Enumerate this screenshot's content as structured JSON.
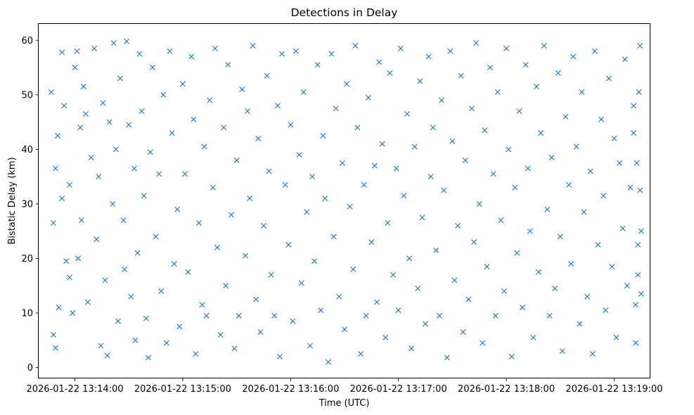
{
  "chart_data": {
    "type": "scatter",
    "title": "Detections in Delay",
    "xlabel": "Time (UTC)",
    "ylabel": "Bistatic Delay (km)",
    "xlim_minutes": [
      -0.336,
      5.336
    ],
    "ylim": [
      -2.0,
      63.0
    ],
    "x_ticks": [
      {
        "value": 0,
        "label": "2026-01-22 13:14:00"
      },
      {
        "value": 1,
        "label": "2026-01-22 13:15:00"
      },
      {
        "value": 2,
        "label": "2026-01-22 13:16:00"
      },
      {
        "value": 3,
        "label": "2026-01-22 13:17:00"
      },
      {
        "value": 4,
        "label": "2026-01-22 13:18:00"
      },
      {
        "value": 5,
        "label": "2026-01-22 13:19:00"
      }
    ],
    "y_ticks": [
      {
        "value": 0,
        "label": "0"
      },
      {
        "value": 10,
        "label": "10"
      },
      {
        "value": 20,
        "label": "20"
      },
      {
        "value": 30,
        "label": "30"
      },
      {
        "value": 40,
        "label": "40"
      },
      {
        "value": 50,
        "label": "50"
      },
      {
        "value": 60,
        "label": "60"
      }
    ],
    "grid": false,
    "marker": "x",
    "marker_color": "#1f77b4",
    "x_unit": "minutes after 2026-01-22 13:14:00 UTC",
    "series": [
      {
        "name": "detections",
        "points": [
          [
            -0.22,
            50.5
          ],
          [
            -0.2,
            26.5
          ],
          [
            -0.18,
            36.5
          ],
          [
            -0.16,
            42.5
          ],
          [
            -0.2,
            6.0
          ],
          [
            -0.15,
            11.0
          ],
          [
            -0.12,
            57.8
          ],
          [
            -0.1,
            48.0
          ],
          [
            -0.12,
            31.0
          ],
          [
            -0.08,
            19.5
          ],
          [
            -0.18,
            3.6
          ],
          [
            -0.05,
            33.5
          ],
          [
            -0.02,
            10.0
          ],
          [
            0.02,
            58.0
          ],
          [
            0.05,
            44.0
          ],
          [
            -0.05,
            16.5
          ],
          [
            0.0,
            55.0
          ],
          [
            0.03,
            20.0
          ],
          [
            0.08,
            51.5
          ],
          [
            0.1,
            46.5
          ],
          [
            0.06,
            27.0
          ],
          [
            0.12,
            12.0
          ],
          [
            0.15,
            38.5
          ],
          [
            0.18,
            58.5
          ],
          [
            0.2,
            23.5
          ],
          [
            0.22,
            35.0
          ],
          [
            0.24,
            4.0
          ],
          [
            0.26,
            48.5
          ],
          [
            0.28,
            16.0
          ],
          [
            0.3,
            2.2
          ],
          [
            0.32,
            45.0
          ],
          [
            0.35,
            30.0
          ],
          [
            0.36,
            59.5
          ],
          [
            0.38,
            40.0
          ],
          [
            0.4,
            8.5
          ],
          [
            0.42,
            53.0
          ],
          [
            0.45,
            27.0
          ],
          [
            0.46,
            18.0
          ],
          [
            0.48,
            59.8
          ],
          [
            0.5,
            44.5
          ],
          [
            0.52,
            13.0
          ],
          [
            0.55,
            36.5
          ],
          [
            0.56,
            5.0
          ],
          [
            0.58,
            21.0
          ],
          [
            0.6,
            57.5
          ],
          [
            0.62,
            47.0
          ],
          [
            0.64,
            31.5
          ],
          [
            0.66,
            9.0
          ],
          [
            0.68,
            1.8
          ],
          [
            0.7,
            39.5
          ],
          [
            0.72,
            55.0
          ],
          [
            0.75,
            24.0
          ],
          [
            0.78,
            35.5
          ],
          [
            0.8,
            14.0
          ],
          [
            0.82,
            50.0
          ],
          [
            0.85,
            4.5
          ],
          [
            0.88,
            58.0
          ],
          [
            0.9,
            43.0
          ],
          [
            0.92,
            19.0
          ],
          [
            0.95,
            29.0
          ],
          [
            0.97,
            7.5
          ],
          [
            1.0,
            52.0
          ],
          [
            1.02,
            35.5
          ],
          [
            1.05,
            17.5
          ],
          [
            1.08,
            57.0
          ],
          [
            1.1,
            45.5
          ],
          [
            1.12,
            2.5
          ],
          [
            1.15,
            26.5
          ],
          [
            1.18,
            11.5
          ],
          [
            1.2,
            40.5
          ],
          [
            1.22,
            9.5
          ],
          [
            1.25,
            49.0
          ],
          [
            1.28,
            33.0
          ],
          [
            1.3,
            58.5
          ],
          [
            1.32,
            22.0
          ],
          [
            1.35,
            6.0
          ],
          [
            1.38,
            44.0
          ],
          [
            1.4,
            15.0
          ],
          [
            1.42,
            55.5
          ],
          [
            1.45,
            28.0
          ],
          [
            1.48,
            3.5
          ],
          [
            1.5,
            38.0
          ],
          [
            1.52,
            9.5
          ],
          [
            1.55,
            51.0
          ],
          [
            1.58,
            20.5
          ],
          [
            1.6,
            47.0
          ],
          [
            1.62,
            31.0
          ],
          [
            1.65,
            59.0
          ],
          [
            1.68,
            12.5
          ],
          [
            1.7,
            42.0
          ],
          [
            1.72,
            6.5
          ],
          [
            1.75,
            26.0
          ],
          [
            1.78,
            53.5
          ],
          [
            1.8,
            36.0
          ],
          [
            1.82,
            17.0
          ],
          [
            1.85,
            9.5
          ],
          [
            1.88,
            48.0
          ],
          [
            1.9,
            2.0
          ],
          [
            1.92,
            57.5
          ],
          [
            1.95,
            33.5
          ],
          [
            1.98,
            22.5
          ],
          [
            2.0,
            44.5
          ],
          [
            2.02,
            8.5
          ],
          [
            2.05,
            58.0
          ],
          [
            2.08,
            39.0
          ],
          [
            2.1,
            15.5
          ],
          [
            2.12,
            50.5
          ],
          [
            2.15,
            28.5
          ],
          [
            2.18,
            4.0
          ],
          [
            2.2,
            35.0
          ],
          [
            2.22,
            19.5
          ],
          [
            2.25,
            55.5
          ],
          [
            2.28,
            10.5
          ],
          [
            2.3,
            42.5
          ],
          [
            2.32,
            31.0
          ],
          [
            2.35,
            1.0
          ],
          [
            2.38,
            57.5
          ],
          [
            2.4,
            24.0
          ],
          [
            2.42,
            47.5
          ],
          [
            2.45,
            13.0
          ],
          [
            2.48,
            37.5
          ],
          [
            2.5,
            7.0
          ],
          [
            2.52,
            52.0
          ],
          [
            2.55,
            29.5
          ],
          [
            2.58,
            18.0
          ],
          [
            2.6,
            59.0
          ],
          [
            2.62,
            44.0
          ],
          [
            2.65,
            2.5
          ],
          [
            2.68,
            33.5
          ],
          [
            2.7,
            9.5
          ],
          [
            2.72,
            49.5
          ],
          [
            2.75,
            23.0
          ],
          [
            2.78,
            37.0
          ],
          [
            2.8,
            12.0
          ],
          [
            2.82,
            56.0
          ],
          [
            2.85,
            41.0
          ],
          [
            2.88,
            5.5
          ],
          [
            2.9,
            26.5
          ],
          [
            2.92,
            54.0
          ],
          [
            2.95,
            17.0
          ],
          [
            2.98,
            36.5
          ],
          [
            3.0,
            10.5
          ],
          [
            3.02,
            58.5
          ],
          [
            3.05,
            31.5
          ],
          [
            3.08,
            46.5
          ],
          [
            3.1,
            20.0
          ],
          [
            3.12,
            3.5
          ],
          [
            3.15,
            40.5
          ],
          [
            3.18,
            14.5
          ],
          [
            3.2,
            52.5
          ],
          [
            3.22,
            27.5
          ],
          [
            3.25,
            8.0
          ],
          [
            3.28,
            57.0
          ],
          [
            3.3,
            35.0
          ],
          [
            3.32,
            44.0
          ],
          [
            3.35,
            21.5
          ],
          [
            3.38,
            9.5
          ],
          [
            3.4,
            49.0
          ],
          [
            3.42,
            32.5
          ],
          [
            3.45,
            1.8
          ],
          [
            3.48,
            58.0
          ],
          [
            3.5,
            41.5
          ],
          [
            3.52,
            16.0
          ],
          [
            3.55,
            26.0
          ],
          [
            3.58,
            53.5
          ],
          [
            3.6,
            6.5
          ],
          [
            3.62,
            38.0
          ],
          [
            3.65,
            12.5
          ],
          [
            3.68,
            47.5
          ],
          [
            3.7,
            23.0
          ],
          [
            3.72,
            59.5
          ],
          [
            3.75,
            30.0
          ],
          [
            3.78,
            4.5
          ],
          [
            3.8,
            43.5
          ],
          [
            3.82,
            18.5
          ],
          [
            3.85,
            55.0
          ],
          [
            3.88,
            35.5
          ],
          [
            3.9,
            9.5
          ],
          [
            3.92,
            50.5
          ],
          [
            3.95,
            27.0
          ],
          [
            3.98,
            14.0
          ],
          [
            4.0,
            58.5
          ],
          [
            4.02,
            40.0
          ],
          [
            4.05,
            2.0
          ],
          [
            4.08,
            33.0
          ],
          [
            4.1,
            21.0
          ],
          [
            4.12,
            47.0
          ],
          [
            4.15,
            11.0
          ],
          [
            4.18,
            55.5
          ],
          [
            4.2,
            36.5
          ],
          [
            4.22,
            25.0
          ],
          [
            4.25,
            5.5
          ],
          [
            4.28,
            51.5
          ],
          [
            4.3,
            17.5
          ],
          [
            4.32,
            43.0
          ],
          [
            4.35,
            59.0
          ],
          [
            4.38,
            29.0
          ],
          [
            4.4,
            9.5
          ],
          [
            4.42,
            38.5
          ],
          [
            4.45,
            14.5
          ],
          [
            4.48,
            54.0
          ],
          [
            4.5,
            24.0
          ],
          [
            4.52,
            3.0
          ],
          [
            4.55,
            46.0
          ],
          [
            4.58,
            33.5
          ],
          [
            4.6,
            19.0
          ],
          [
            4.62,
            57.0
          ],
          [
            4.65,
            40.5
          ],
          [
            4.68,
            8.0
          ],
          [
            4.7,
            50.5
          ],
          [
            4.72,
            28.5
          ],
          [
            4.75,
            13.0
          ],
          [
            4.78,
            36.0
          ],
          [
            4.8,
            2.5
          ],
          [
            4.82,
            58.0
          ],
          [
            4.85,
            22.5
          ],
          [
            4.88,
            45.5
          ],
          [
            4.9,
            31.5
          ],
          [
            4.92,
            10.5
          ],
          [
            4.95,
            53.0
          ],
          [
            4.98,
            18.5
          ],
          [
            5.0,
            42.0
          ],
          [
            5.02,
            5.5
          ],
          [
            5.05,
            37.5
          ],
          [
            5.08,
            25.5
          ],
          [
            5.1,
            56.5
          ],
          [
            5.12,
            15.0
          ],
          [
            5.15,
            33.0
          ],
          [
            5.18,
            48.0
          ],
          [
            5.2,
            11.5
          ],
          [
            5.22,
            22.5
          ],
          [
            5.24,
            59.0
          ],
          [
            5.25,
            13.5
          ],
          [
            5.25,
            25.0
          ],
          [
            5.23,
            50.5
          ],
          [
            5.21,
            37.5
          ],
          [
            5.2,
            4.5
          ],
          [
            5.24,
            32.5
          ],
          [
            5.22,
            17.0
          ],
          [
            5.18,
            43.0
          ]
        ]
      }
    ]
  }
}
